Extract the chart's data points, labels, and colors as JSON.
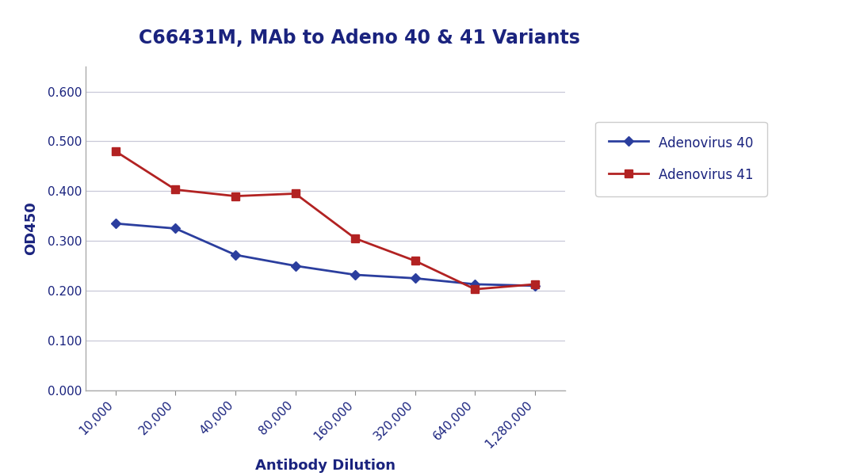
{
  "title": "C66431M, MAb to Adeno 40 & 41 Variants",
  "xlabel": "Antibody Dilution",
  "ylabel": "OD450",
  "x_labels": [
    "10,000",
    "20,000",
    "40,000",
    "80,000",
    "160,000",
    "320,000",
    "640,000",
    "1,280,000"
  ],
  "x_values": [
    1,
    2,
    3,
    4,
    5,
    6,
    7,
    8
  ],
  "adeno40_values": [
    0.335,
    0.325,
    0.272,
    0.25,
    0.232,
    0.225,
    0.213,
    0.21
  ],
  "adeno41_values": [
    0.48,
    0.403,
    0.39,
    0.395,
    0.305,
    0.26,
    0.203,
    0.213
  ],
  "adeno40_color": "#2B3E9E",
  "adeno41_color": "#B22222",
  "adeno40_label": "Adenovirus 40",
  "adeno41_label": "Adenovirus 41",
  "ylim": [
    0.0,
    0.65
  ],
  "yticks": [
    0.0,
    0.1,
    0.2,
    0.3,
    0.4,
    0.5,
    0.6
  ],
  "ytick_labels": [
    "0.000",
    "0.100",
    "0.200",
    "0.300",
    "0.400",
    "0.500",
    "0.600"
  ],
  "background_color": "#FFFFFF",
  "outer_background": "#FFFFFF",
  "grid_color": "#C8C8D8",
  "text_color": "#1A237E",
  "title_fontsize": 17,
  "axis_label_fontsize": 13,
  "tick_fontsize": 11,
  "legend_fontsize": 12
}
